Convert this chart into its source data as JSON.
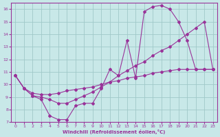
{
  "xlabel": "Windchill (Refroidissement éolien,°C)",
  "bg_color": "#c8e8e8",
  "grid_color": "#a0c8c8",
  "line_color": "#993399",
  "xlim": [
    -0.5,
    23.5
  ],
  "ylim": [
    7,
    16.5
  ],
  "yticks": [
    7,
    8,
    9,
    10,
    11,
    12,
    13,
    14,
    15,
    16
  ],
  "xticks": [
    0,
    1,
    2,
    3,
    4,
    5,
    6,
    7,
    8,
    9,
    10,
    11,
    12,
    13,
    14,
    15,
    16,
    17,
    18,
    19,
    20,
    21,
    22,
    23
  ],
  "series1_x": [
    0,
    1,
    2,
    3,
    4,
    5,
    6,
    7,
    8,
    9,
    10,
    11,
    12,
    13,
    14,
    15,
    16,
    17,
    18,
    19,
    20,
    21,
    22,
    23
  ],
  "series1_y": [
    10.7,
    9.7,
    9.1,
    8.8,
    7.5,
    7.2,
    7.2,
    8.3,
    8.5,
    8.5,
    9.7,
    11.2,
    10.7,
    13.5,
    10.5,
    15.8,
    16.2,
    16.3,
    16.0,
    15.0,
    13.5,
    11.2,
    11.2,
    11.2
  ],
  "series2_x": [
    0,
    1,
    2,
    3,
    4,
    5,
    6,
    7,
    8,
    9,
    10,
    11,
    12,
    13,
    14,
    15,
    16,
    17,
    18,
    19,
    20,
    21,
    22,
    23
  ],
  "series2_y": [
    10.7,
    9.7,
    9.3,
    9.2,
    9.2,
    9.3,
    9.5,
    9.6,
    9.7,
    9.8,
    10.0,
    10.2,
    10.3,
    10.5,
    10.6,
    10.7,
    10.9,
    11.0,
    11.1,
    11.2,
    11.2,
    11.2,
    11.2,
    11.2
  ],
  "series3_x": [
    0,
    1,
    2,
    3,
    4,
    5,
    6,
    7,
    8,
    9,
    10,
    11,
    12,
    13,
    14,
    15,
    16,
    17,
    18,
    19,
    20,
    21,
    22,
    23
  ],
  "series3_y": [
    10.7,
    9.7,
    9.1,
    9.0,
    8.8,
    8.5,
    8.5,
    8.8,
    9.1,
    9.4,
    9.8,
    10.2,
    10.7,
    11.1,
    11.5,
    11.8,
    12.3,
    12.7,
    13.0,
    13.5,
    14.0,
    14.5,
    15.0,
    11.2
  ]
}
